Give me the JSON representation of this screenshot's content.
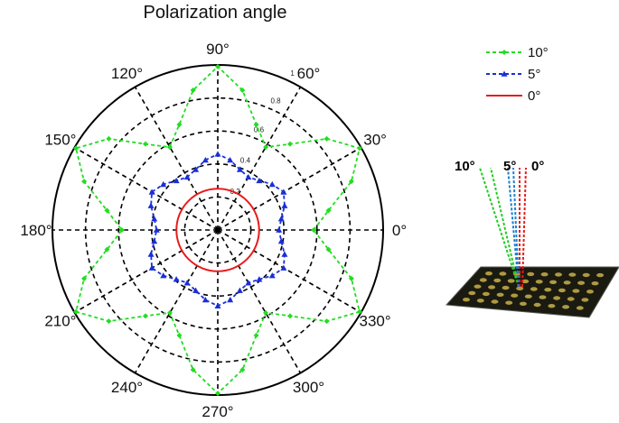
{
  "chart_data": {
    "type": "polar-line",
    "title": "Polarization angle",
    "angle_ticks": [
      "0°",
      "30°",
      "60°",
      "90°",
      "120°",
      "150°",
      "180°",
      "210°",
      "240°",
      "270°",
      "300°",
      "330°"
    ],
    "angle_tick_values": [
      0,
      30,
      60,
      90,
      120,
      150,
      180,
      210,
      240,
      270,
      300,
      330
    ],
    "radial_ticks": [
      "0.2",
      "0.4",
      "0.6",
      "0.8",
      "1"
    ],
    "radial_tick_values": [
      0.2,
      0.4,
      0.6,
      0.8,
      1.0
    ],
    "rlim": [
      0,
      1.0
    ],
    "grid": true,
    "legend_position": "top-right",
    "series": [
      {
        "name": "10°",
        "color": "#22dd22",
        "style": "dashed-diamond",
        "theta": [
          0,
          10,
          20,
          30,
          40,
          50,
          60,
          70,
          80,
          90,
          100,
          110,
          120,
          130,
          140,
          150,
          160,
          170,
          180,
          190,
          200,
          210,
          220,
          230,
          240,
          250,
          260,
          270,
          280,
          290,
          300,
          310,
          320,
          330,
          340,
          350
        ],
        "r": [
          0.58,
          0.68,
          0.86,
          0.99,
          0.86,
          0.68,
          0.58,
          0.68,
          0.86,
          0.99,
          0.86,
          0.68,
          0.58,
          0.68,
          0.86,
          0.99,
          0.86,
          0.68,
          0.58,
          0.68,
          0.86,
          0.99,
          0.86,
          0.68,
          0.58,
          0.68,
          0.86,
          0.99,
          0.86,
          0.68,
          0.58,
          0.68,
          0.86,
          0.99,
          0.86,
          0.68
        ]
      },
      {
        "name": "5°",
        "color": "#1a2fd8",
        "style": "dashed-triangle",
        "theta": [
          0,
          10,
          20,
          30,
          40,
          50,
          60,
          70,
          80,
          90,
          100,
          110,
          120,
          130,
          140,
          150,
          160,
          170,
          180,
          190,
          200,
          210,
          220,
          230,
          240,
          250,
          260,
          270,
          280,
          290,
          300,
          310,
          320,
          330,
          340,
          350
        ],
        "r": [
          0.37,
          0.39,
          0.43,
          0.46,
          0.43,
          0.39,
          0.37,
          0.39,
          0.43,
          0.46,
          0.43,
          0.39,
          0.37,
          0.39,
          0.43,
          0.46,
          0.43,
          0.39,
          0.37,
          0.39,
          0.43,
          0.46,
          0.43,
          0.39,
          0.37,
          0.39,
          0.43,
          0.46,
          0.43,
          0.39,
          0.37,
          0.39,
          0.43,
          0.46,
          0.43,
          0.39
        ]
      },
      {
        "name": "0°",
        "color": "#e81c1c",
        "style": "solid",
        "theta": [
          0,
          30,
          60,
          90,
          120,
          150,
          180,
          210,
          240,
          270,
          300,
          330
        ],
        "r": [
          0.25,
          0.25,
          0.25,
          0.25,
          0.25,
          0.25,
          0.25,
          0.25,
          0.25,
          0.25,
          0.25,
          0.25
        ]
      }
    ]
  },
  "inset": {
    "labels": [
      {
        "text": "10°",
        "color": "#22cc22"
      },
      {
        "text": "5°",
        "color": "#1a7fd0"
      },
      {
        "text": "0°",
        "color": "#e81c1c"
      }
    ]
  }
}
